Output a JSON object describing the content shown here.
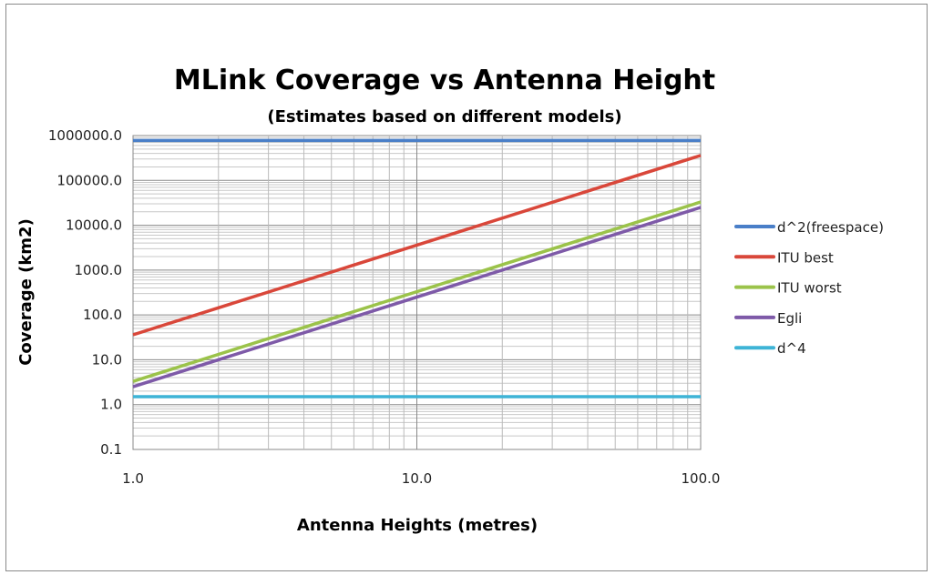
{
  "chart_data": {
    "type": "line",
    "title": "MLink Coverage vs Antenna Height",
    "subtitle": "(Estimates based on different models)",
    "xlabel": "Antenna Heights (metres)",
    "ylabel": "Coverage (km2)",
    "xscale": "log",
    "yscale": "log",
    "xlim": [
      1,
      100
    ],
    "ylim": [
      0.1,
      1000000
    ],
    "x_ticks": [
      "1.0",
      "10.0",
      "100.0"
    ],
    "y_ticks": [
      "0.1",
      "1.0",
      "10.0",
      "100.0",
      "1000.0",
      "10000.0",
      "100000.0",
      "1000000.0"
    ],
    "grid": true,
    "legend_position": "right",
    "x": [
      1,
      100
    ],
    "series": [
      {
        "name": "d^2(freespace)",
        "color": "#4a7fc8",
        "values": [
          780000,
          780000
        ]
      },
      {
        "name": "ITU best",
        "color": "#d9473a",
        "values": [
          36,
          360000
        ]
      },
      {
        "name": "ITU worst",
        "color": "#9bc34a",
        "values": [
          3.3,
          33000
        ]
      },
      {
        "name": "Egli",
        "color": "#7e5aa8",
        "values": [
          2.5,
          25000
        ]
      },
      {
        "name": "d^4",
        "color": "#3eb4d6",
        "values": [
          1.5,
          1.5
        ]
      }
    ]
  }
}
